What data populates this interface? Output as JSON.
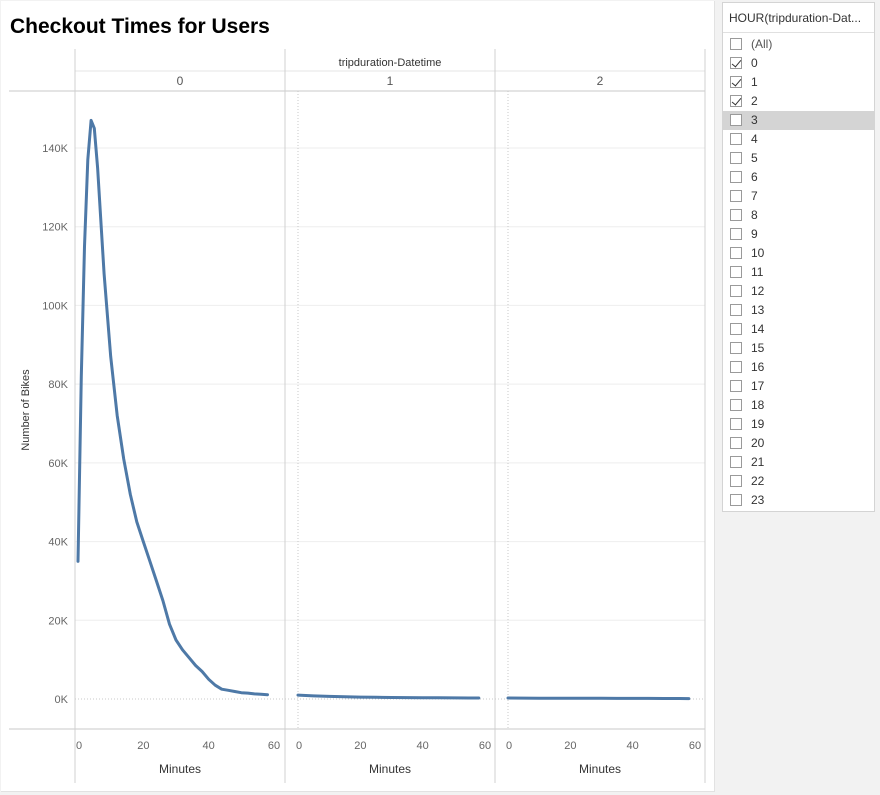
{
  "sheet": {
    "title": "Checkout Times for Users"
  },
  "filter": {
    "title": "HOUR(tripduration-Dat...",
    "highlighted_value": "3",
    "items": [
      {
        "label": "(All)",
        "checked": false
      },
      {
        "label": "0",
        "checked": true
      },
      {
        "label": "1",
        "checked": true
      },
      {
        "label": "2",
        "checked": true
      },
      {
        "label": "3",
        "checked": false
      },
      {
        "label": "4",
        "checked": false
      },
      {
        "label": "5",
        "checked": false
      },
      {
        "label": "6",
        "checked": false
      },
      {
        "label": "7",
        "checked": false
      },
      {
        "label": "8",
        "checked": false
      },
      {
        "label": "9",
        "checked": false
      },
      {
        "label": "10",
        "checked": false
      },
      {
        "label": "11",
        "checked": false
      },
      {
        "label": "12",
        "checked": false
      },
      {
        "label": "13",
        "checked": false
      },
      {
        "label": "14",
        "checked": false
      },
      {
        "label": "15",
        "checked": false
      },
      {
        "label": "16",
        "checked": false
      },
      {
        "label": "17",
        "checked": false
      },
      {
        "label": "18",
        "checked": false
      },
      {
        "label": "19",
        "checked": false
      },
      {
        "label": "20",
        "checked": false
      },
      {
        "label": "21",
        "checked": false
      },
      {
        "label": "22",
        "checked": false
      },
      {
        "label": "23",
        "checked": false
      }
    ]
  },
  "chart_data": {
    "type": "line",
    "title": "Checkout Times for Users",
    "column_header": "tripduration-Datetime",
    "ylabel": "Number of Bikes",
    "xlabel": "Minutes",
    "ylim": [
      0,
      150000
    ],
    "xlim": [
      0,
      60
    ],
    "yticks": [
      0,
      20000,
      40000,
      60000,
      80000,
      100000,
      120000,
      140000
    ],
    "ytick_labels": [
      "0K",
      "20K",
      "40K",
      "60K",
      "80K",
      "100K",
      "120K",
      "140K"
    ],
    "xticks": [
      0,
      20,
      40,
      60
    ],
    "xtick_labels": [
      "0",
      "20",
      "40",
      "60"
    ],
    "grid": true,
    "line_color": "#4e79a7",
    "panels": [
      {
        "header": "0",
        "x": [
          0,
          1,
          2,
          3,
          4,
          5,
          6,
          8,
          10,
          12,
          14,
          16,
          18,
          20,
          22,
          24,
          26,
          28,
          30,
          32,
          34,
          36,
          38,
          40,
          42,
          44,
          46,
          48,
          50,
          52,
          54,
          56,
          58
        ],
        "y": [
          35000,
          82000,
          115000,
          137000,
          147000,
          145000,
          135000,
          108000,
          87000,
          72000,
          61000,
          52000,
          45000,
          40000,
          35000,
          30000,
          25000,
          19000,
          15000,
          12500,
          10500,
          8500,
          7000,
          5000,
          3500,
          2500,
          2200,
          1900,
          1600,
          1500,
          1300,
          1200,
          1100
        ]
      },
      {
        "header": "1",
        "x": [
          0,
          5,
          10,
          15,
          20,
          25,
          30,
          35,
          40,
          45,
          50,
          55,
          58
        ],
        "y": [
          1000,
          800,
          650,
          550,
          480,
          420,
          380,
          350,
          320,
          300,
          280,
          260,
          250
        ]
      },
      {
        "header": "2",
        "x": [
          0,
          5,
          10,
          15,
          20,
          25,
          30,
          35,
          40,
          45,
          50,
          55,
          58
        ],
        "y": [
          250,
          230,
          210,
          200,
          190,
          180,
          170,
          160,
          150,
          140,
          130,
          120,
          110
        ]
      }
    ]
  }
}
